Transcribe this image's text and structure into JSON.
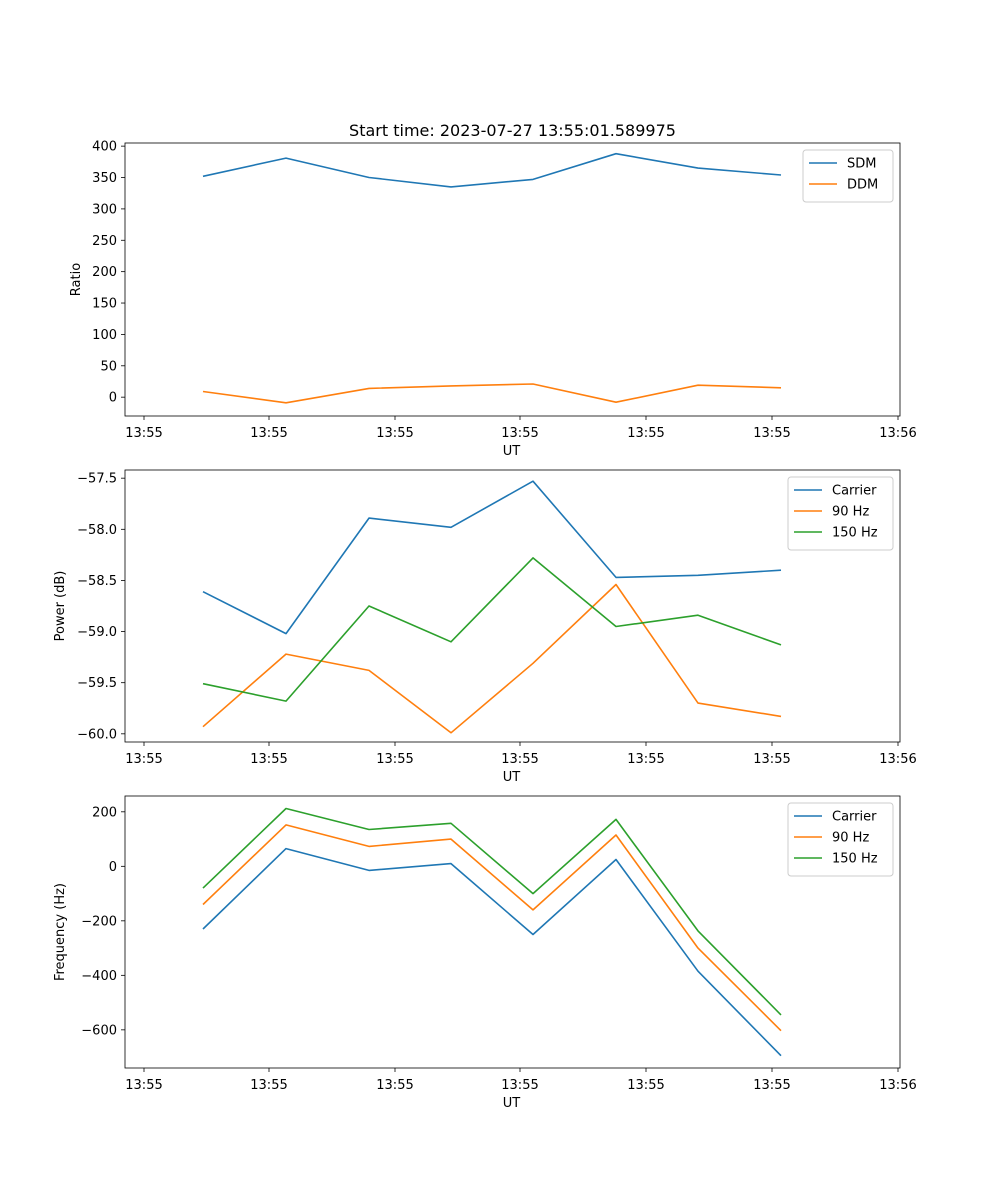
{
  "chart_data": [
    {
      "type": "line",
      "title": "Start time: 2023-07-27 13:55:01.589975",
      "xlabel": "UT",
      "ylabel": "Ratio",
      "x_tick_labels": [
        "13:55",
        "13:55",
        "13:55",
        "13:55",
        "13:55",
        "13:55",
        "13:56"
      ],
      "y_ticks": [
        0,
        50,
        100,
        150,
        200,
        250,
        300,
        350,
        400
      ],
      "ylim": [
        -30,
        405
      ],
      "legend": "top-right",
      "series": [
        {
          "name": "SDM",
          "color": "#1f77b4",
          "values": [
            352,
            381,
            350,
            335,
            347,
            388,
            365,
            354
          ]
        },
        {
          "name": "DDM",
          "color": "#ff7f0e",
          "values": [
            9,
            -9,
            14,
            18,
            21,
            -8,
            19,
            15
          ]
        }
      ]
    },
    {
      "type": "line",
      "title": "",
      "xlabel": "UT",
      "ylabel": "Power (dB)",
      "x_tick_labels": [
        "13:55",
        "13:55",
        "13:55",
        "13:55",
        "13:55",
        "13:55",
        "13:56"
      ],
      "y_ticks": [
        -60.0,
        -59.5,
        -59.0,
        -58.5,
        -58.0,
        -57.5
      ],
      "y_tick_labels": [
        "−60.0",
        "−59.5",
        "−59.0",
        "−58.5",
        "−58.0",
        "−57.5"
      ],
      "ylim": [
        -60.08,
        -57.42
      ],
      "legend": "top-right",
      "series": [
        {
          "name": "Carrier",
          "color": "#1f77b4",
          "values": [
            -58.61,
            -59.02,
            -57.89,
            -57.98,
            -57.53,
            -58.47,
            -58.45,
            -58.4
          ]
        },
        {
          "name": "90 Hz",
          "color": "#ff7f0e",
          "values": [
            -59.93,
            -59.22,
            -59.38,
            -59.99,
            -59.31,
            -58.54,
            -59.7,
            -59.83
          ]
        },
        {
          "name": "150 Hz",
          "color": "#2ca02c",
          "values": [
            -59.51,
            -59.68,
            -58.75,
            -59.1,
            -58.28,
            -58.95,
            -58.84,
            -59.13
          ]
        }
      ]
    },
    {
      "type": "line",
      "title": "",
      "xlabel": "UT",
      "ylabel": "Frequency (Hz)",
      "x_tick_labels": [
        "13:55",
        "13:55",
        "13:55",
        "13:55",
        "13:55",
        "13:55",
        "13:56"
      ],
      "y_ticks": [
        -600,
        -400,
        -200,
        0,
        200
      ],
      "y_tick_labels": [
        "−600",
        "−400",
        "−200",
        "0",
        "200"
      ],
      "ylim": [
        -740,
        258
      ],
      "legend": "top-right",
      "series": [
        {
          "name": "Carrier",
          "color": "#1f77b4",
          "values": [
            -230,
            65,
            -15,
            10,
            -250,
            25,
            -385,
            -695
          ]
        },
        {
          "name": "90 Hz",
          "color": "#ff7f0e",
          "values": [
            -140,
            152,
            73,
            100,
            -160,
            115,
            -300,
            -603
          ]
        },
        {
          "name": "150 Hz",
          "color": "#2ca02c",
          "values": [
            -80,
            212,
            135,
            158,
            -100,
            172,
            -237,
            -545
          ]
        }
      ]
    }
  ]
}
